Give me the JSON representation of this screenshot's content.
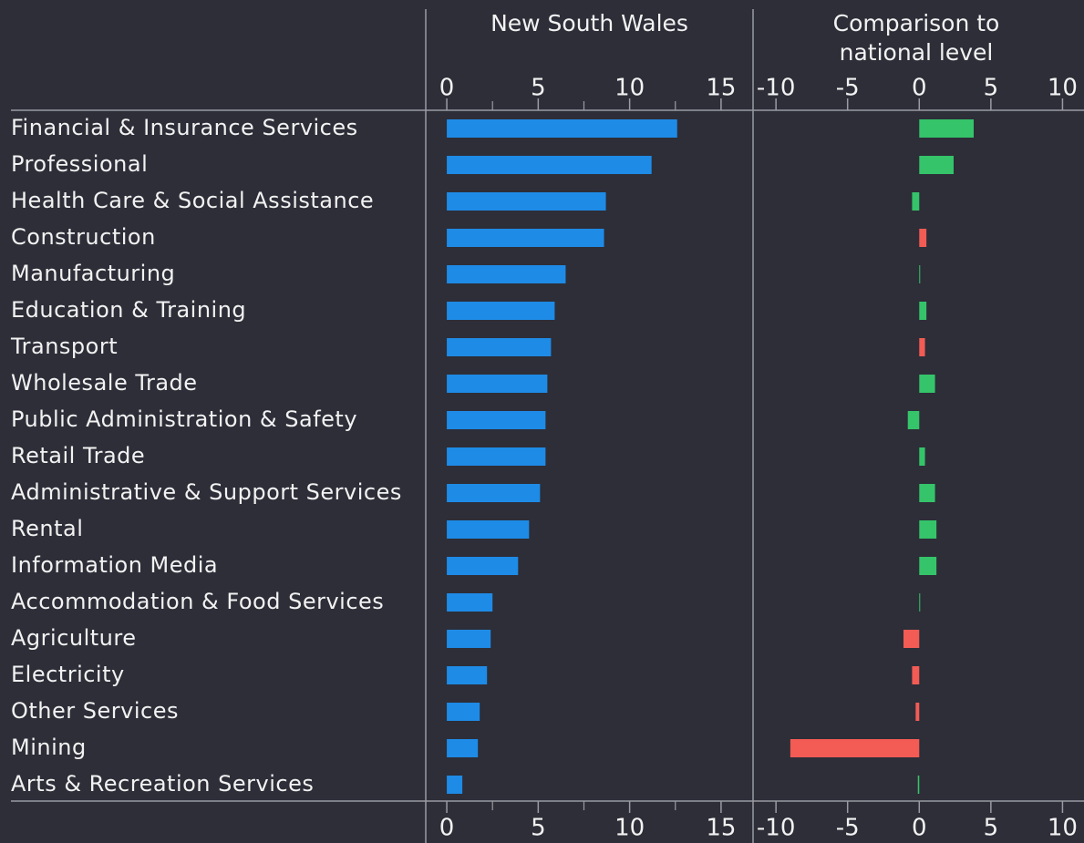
{
  "chart_data": [
    {
      "type": "bar",
      "orientation": "horizontal",
      "title": "New South Wales",
      "categories": [
        "Financial & Insurance Services",
        "Professional",
        "Health Care & Social Assistance",
        "Construction",
        "Manufacturing",
        "Education & Training",
        "Transport",
        "Wholesale Trade",
        "Public Administration & Safety",
        "Retail Trade",
        "Administrative & Support Services",
        "Rental",
        "Information Media",
        "Accommodation & Food Services",
        "Agriculture",
        "Electricity",
        "Other Services",
        "Mining",
        "Arts & Recreation Services"
      ],
      "values": [
        12.6,
        11.2,
        8.7,
        8.6,
        6.5,
        5.9,
        5.7,
        5.5,
        5.4,
        5.4,
        5.1,
        4.5,
        3.9,
        2.5,
        2.4,
        2.2,
        1.8,
        1.7,
        0.85
      ],
      "color": "#1e8be6",
      "xlim": [
        -1.15,
        16.75
      ],
      "xticks": [
        0,
        5,
        10,
        15
      ],
      "minor_xticks": [
        2.5,
        7.5,
        12.5
      ]
    },
    {
      "type": "bar",
      "orientation": "horizontal",
      "title": "Comparison to national level",
      "values": [
        3.8,
        2.4,
        -0.5,
        0.5,
        0.05,
        0.5,
        0.4,
        1.1,
        -0.8,
        0.4,
        1.1,
        1.2,
        1.2,
        0.02,
        -1.1,
        -0.5,
        -0.25,
        -9.0,
        -0.1
      ],
      "colors": [
        "#35c46a",
        "#35c46a",
        "#35c46a",
        "#f25c54",
        "#35c46a",
        "#35c46a",
        "#f25c54",
        "#35c46a",
        "#35c46a",
        "#35c46a",
        "#35c46a",
        "#35c46a",
        "#35c46a",
        "#35c46a",
        "#f25c54",
        "#f25c54",
        "#f25c54",
        "#f25c54",
        "#35c46a"
      ],
      "xlim": [
        -11.6,
        11.5
      ],
      "xticks": [
        -10,
        -5,
        0,
        5,
        10
      ]
    }
  ]
}
